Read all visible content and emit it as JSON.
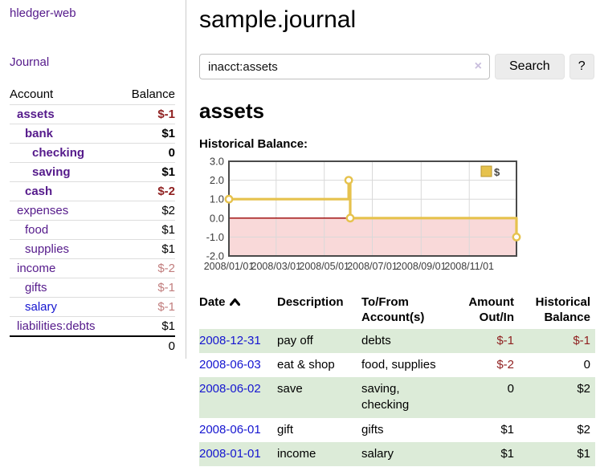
{
  "sidebar": {
    "brand": "hledger-web",
    "journal_link": "Journal",
    "accounts_table": {
      "headers": [
        "Account",
        "Balance"
      ],
      "rows": [
        {
          "name": "assets",
          "indent": 1,
          "bold": true,
          "blue": false,
          "balance": "$-1",
          "tone": "neg"
        },
        {
          "name": "bank",
          "indent": 2,
          "bold": true,
          "blue": false,
          "balance": "$1",
          "tone": ""
        },
        {
          "name": "checking",
          "indent": 3,
          "bold": true,
          "blue": false,
          "balance": "0",
          "tone": ""
        },
        {
          "name": "saving",
          "indent": 3,
          "bold": true,
          "blue": false,
          "balance": "$1",
          "tone": ""
        },
        {
          "name": "cash",
          "indent": 2,
          "bold": true,
          "blue": false,
          "balance": "$-2",
          "tone": "neg"
        },
        {
          "name": "expenses",
          "indent": 1,
          "bold": false,
          "blue": false,
          "balance": "$2",
          "tone": ""
        },
        {
          "name": "food",
          "indent": 2,
          "bold": false,
          "blue": false,
          "balance": "$1",
          "tone": ""
        },
        {
          "name": "supplies",
          "indent": 2,
          "bold": false,
          "blue": false,
          "balance": "$1",
          "tone": ""
        },
        {
          "name": "income",
          "indent": 1,
          "bold": false,
          "blue": false,
          "balance": "$-2",
          "tone": "negmuted"
        },
        {
          "name": "gifts",
          "indent": 2,
          "bold": false,
          "blue": false,
          "balance": "$-1",
          "tone": "negmuted"
        },
        {
          "name": "salary",
          "indent": 2,
          "bold": false,
          "blue": true,
          "balance": "$-1",
          "tone": "negmuted"
        },
        {
          "name": "liabilities:debts",
          "indent": 1,
          "bold": false,
          "blue": false,
          "balance": "$1",
          "tone": ""
        }
      ],
      "total": "0"
    }
  },
  "header": {
    "title": "sample.journal"
  },
  "search": {
    "value": "inacct:assets",
    "clear_icon": "×",
    "button_label": "Search",
    "help_label": "?"
  },
  "account_page": {
    "title": "assets",
    "chart_label": "Historical Balance:"
  },
  "chart_data": {
    "type": "line",
    "title": "Historical Balance",
    "step": true,
    "legend": [
      {
        "label": "$"
      }
    ],
    "legend_position": "top-right",
    "grid": true,
    "ylim": [
      -2,
      3
    ],
    "xlim": [
      "2008-01-01",
      "2008-12-31"
    ],
    "y_ticks": [
      "3.0",
      "2.0",
      "1.0",
      "0.0",
      "-1.0",
      "-2.0"
    ],
    "x_ticks": [
      {
        "label": "2008/01/01",
        "date": "2008-01-01"
      },
      {
        "label": "2008/03/01",
        "date": "2008-03-01"
      },
      {
        "label": "2008/05/01",
        "date": "2008-05-01"
      },
      {
        "label": "2008/07/01",
        "date": "2008-07-01"
      },
      {
        "label": "2008/09/01",
        "date": "2008-09-01"
      },
      {
        "label": "2008/11/01",
        "date": "2008-11-01"
      }
    ],
    "points": [
      {
        "date": "2008-01-01",
        "value": 1
      },
      {
        "date": "2008-06-01",
        "value": 2
      },
      {
        "date": "2008-06-03",
        "value": 0
      },
      {
        "date": "2008-12-31",
        "value": -1
      }
    ],
    "line_color": "#e6c24d",
    "marker_fill": "#ffffff",
    "negative_region_fill": "#f9d9d9",
    "zero_line_color": "#990000",
    "grid_color": "#d9d9d9",
    "border_color": "#4a4a4a"
  },
  "register_table": {
    "columns": [
      {
        "label": "Date",
        "align": "left",
        "sorted": true
      },
      {
        "label": "Description",
        "align": "left",
        "sorted": false
      },
      {
        "label": "To/From Account(s)",
        "align": "left",
        "sorted": false
      },
      {
        "label": "Amount Out/In",
        "align": "right",
        "sorted": false
      },
      {
        "label": "Historical Balance",
        "align": "right",
        "sorted": false
      }
    ],
    "rows": [
      {
        "date": "2008-12-31",
        "description": "pay off",
        "accounts": "debts",
        "amount": "$-1",
        "amount_tone": "neg",
        "balance": "$-1",
        "balance_tone": "neg",
        "shaded": true
      },
      {
        "date": "2008-06-03",
        "description": "eat & shop",
        "accounts": "food, supplies",
        "amount": "$-2",
        "amount_tone": "neg",
        "balance": "0",
        "balance_tone": "",
        "shaded": false
      },
      {
        "date": "2008-06-02",
        "description": "save",
        "accounts": "saving, checking",
        "amount": "0",
        "amount_tone": "",
        "balance": "$2",
        "balance_tone": "",
        "shaded": true
      },
      {
        "date": "2008-06-01",
        "description": "gift",
        "accounts": "gifts",
        "amount": "$1",
        "amount_tone": "",
        "balance": "$2",
        "balance_tone": "",
        "shaded": false
      },
      {
        "date": "2008-01-01",
        "description": "income",
        "accounts": "salary",
        "amount": "$1",
        "amount_tone": "",
        "balance": "$1",
        "balance_tone": "",
        "shaded": true
      }
    ]
  },
  "colors": {
    "link_purple": "#551a8b",
    "link_blue": "#1515d0",
    "negative_red": "#8f1f1f",
    "negative_muted": "#c17d7d",
    "row_shade_green": "#dcebd8",
    "chart_line_gold": "#e6c24d",
    "chart_negative_fill": "#f9d9d9",
    "chart_zero_line": "#990000"
  }
}
